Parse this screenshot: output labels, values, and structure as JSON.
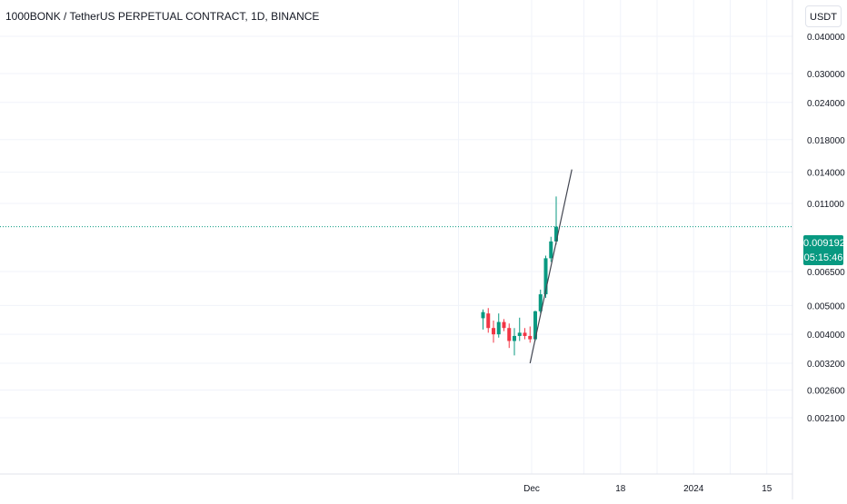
{
  "header": {
    "title": "1000BONK / TetherUS PERPETUAL CONTRACT, 1D, BINANCE",
    "currency": "USDT"
  },
  "price_badge": {
    "price": "0.009192",
    "countdown": "05:15:46"
  },
  "colors": {
    "up": "#089981",
    "down": "#f23645",
    "grid": "#f0f3fa",
    "text": "#131722",
    "last_price_line": "#089981",
    "trendline": "#434651"
  },
  "chart_data": {
    "type": "candlestick",
    "scale": "log",
    "y_ticks": [
      "0.040000",
      "0.030000",
      "0.024000",
      "0.018000",
      "0.014000",
      "0.011000",
      "0.006500",
      "0.005000",
      "0.004000",
      "0.003200",
      "0.002600",
      "0.002100"
    ],
    "x_ticks": [
      "Dec",
      "18",
      "2024",
      "15"
    ],
    "last_price": 0.009192,
    "candles": [
      {
        "date": "2023-11-21",
        "o": 0.00453,
        "h": 0.00485,
        "l": 0.00415,
        "c": 0.00475
      },
      {
        "date": "2023-11-22",
        "o": 0.0047,
        "h": 0.0049,
        "l": 0.00405,
        "c": 0.0042
      },
      {
        "date": "2023-11-23",
        "o": 0.0042,
        "h": 0.00445,
        "l": 0.00375,
        "c": 0.004
      },
      {
        "date": "2023-11-24",
        "o": 0.004,
        "h": 0.0047,
        "l": 0.0039,
        "c": 0.0044
      },
      {
        "date": "2023-11-25",
        "o": 0.0044,
        "h": 0.0045,
        "l": 0.0041,
        "c": 0.0042
      },
      {
        "date": "2023-11-26",
        "o": 0.0042,
        "h": 0.00435,
        "l": 0.0036,
        "c": 0.0038
      },
      {
        "date": "2023-11-27",
        "o": 0.0038,
        "h": 0.0042,
        "l": 0.0034,
        "c": 0.00395
      },
      {
        "date": "2023-11-28",
        "o": 0.00395,
        "h": 0.00455,
        "l": 0.0038,
        "c": 0.00405
      },
      {
        "date": "2023-11-29",
        "o": 0.00405,
        "h": 0.0042,
        "l": 0.00385,
        "c": 0.00395
      },
      {
        "date": "2023-11-30",
        "o": 0.00395,
        "h": 0.00425,
        "l": 0.00375,
        "c": 0.00385
      },
      {
        "date": "2023-12-01",
        "o": 0.00385,
        "h": 0.0048,
        "l": 0.0038,
        "c": 0.00478
      },
      {
        "date": "2023-12-02",
        "o": 0.00478,
        "h": 0.00565,
        "l": 0.0047,
        "c": 0.00545
      },
      {
        "date": "2023-12-03",
        "o": 0.00545,
        "h": 0.00735,
        "l": 0.0053,
        "c": 0.0072
      },
      {
        "date": "2023-12-04",
        "o": 0.0072,
        "h": 0.0085,
        "l": 0.007,
        "c": 0.0082
      },
      {
        "date": "2023-12-05",
        "o": 0.0082,
        "h": 0.0116,
        "l": 0.008,
        "c": 0.00919
      }
    ],
    "trendline": {
      "x0": "2023-11-30",
      "y0": 0.0032,
      "x1": "2023-12-08",
      "y1": 0.0143
    }
  }
}
